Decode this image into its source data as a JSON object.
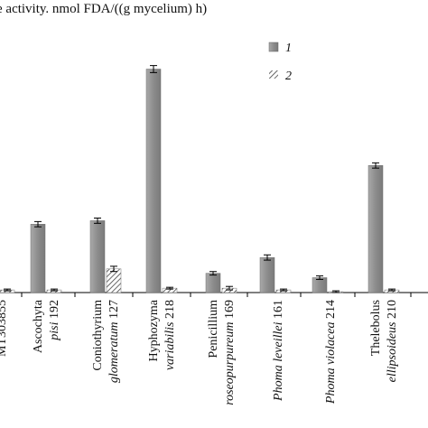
{
  "chart_data": {
    "type": "bar",
    "title": "e activity. nmol FDA/((g mycelium) h)",
    "xlabel": "",
    "ylabel": "",
    "categories": [
      {
        "line1": "MT303855",
        "line1_italic": false,
        "line2": "",
        "line2_italic_part": "",
        "line2_plain_part": ""
      },
      {
        "line1": "Ascochyta",
        "line1_italic": true,
        "line2_italic_part": "pisi",
        "line2_plain_part": " 192"
      },
      {
        "line1": "Coniothyrium",
        "line1_italic": true,
        "line2_italic_part": "glomeratum",
        "line2_plain_part": " 127"
      },
      {
        "line1": "Hyphozyma",
        "line1_italic": true,
        "line2_italic_part": "variabilis",
        "line2_plain_part": " 218"
      },
      {
        "line1": "Penicillium",
        "line1_italic": true,
        "line2_italic_part": "roseopurpureum",
        "line2_plain_part": " 169"
      },
      {
        "line1": "",
        "line1_italic": false,
        "line2_italic_part": "Phoma leveillei",
        "line2_plain_part": " 161"
      },
      {
        "line1": "",
        "line1_italic": false,
        "line2_italic_part": "Phoma violacea",
        "line2_plain_part": " 214"
      },
      {
        "line1": "Thelebolus",
        "line1_italic": true,
        "line2_italic_part": "ellipsoideus",
        "line2_plain_part": " 210"
      }
    ],
    "series": [
      {
        "name": "1",
        "pattern": "solid-gray",
        "values": [
          null,
          78,
          82,
          255,
          22,
          40,
          17,
          145
        ],
        "errors": [
          null,
          3,
          3,
          4,
          2,
          3,
          2,
          3
        ]
      },
      {
        "name": "2",
        "pattern": "hatched",
        "values": [
          3,
          3,
          27,
          5,
          5,
          3,
          1,
          3
        ],
        "errors": [
          1,
          1,
          3,
          1,
          2,
          1,
          1,
          1
        ]
      }
    ],
    "ylim": [
      0,
      272
    ],
    "grid": false,
    "legend_position": "top-right",
    "colors": {
      "series1": "#8f8f8f",
      "series2_stroke": "#555555",
      "axis": "#000000"
    }
  }
}
